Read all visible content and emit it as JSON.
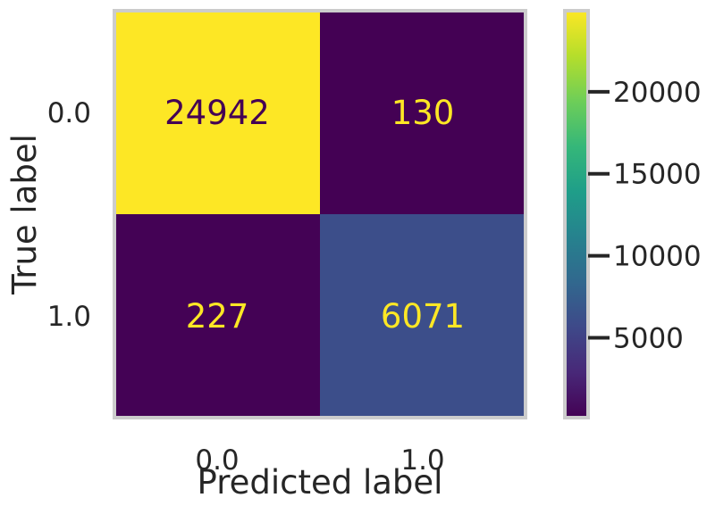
{
  "chart_data": {
    "type": "heatmap",
    "title": "",
    "xlabel": "Predicted label",
    "ylabel": "True label",
    "x_categories": [
      "0.0",
      "1.0"
    ],
    "y_categories": [
      "0.0",
      "1.0"
    ],
    "values": [
      [
        24942,
        130
      ],
      [
        227,
        6071
      ]
    ],
    "colormap": "viridis",
    "colorbar": {
      "ticks": [
        5000,
        10000,
        15000,
        20000
      ],
      "tick_labels": [
        "5000",
        "10000",
        "15000",
        "20000"
      ],
      "range": [
        130,
        24942
      ]
    },
    "grid": false,
    "colors": {
      "frame": "#cccccc",
      "text": "#262626",
      "viridis": [
        "#440154",
        "#482878",
        "#3e4989",
        "#31688e",
        "#26828e",
        "#1f9e89",
        "#35b779",
        "#6ece58",
        "#b5de2b",
        "#fde725"
      ]
    }
  }
}
